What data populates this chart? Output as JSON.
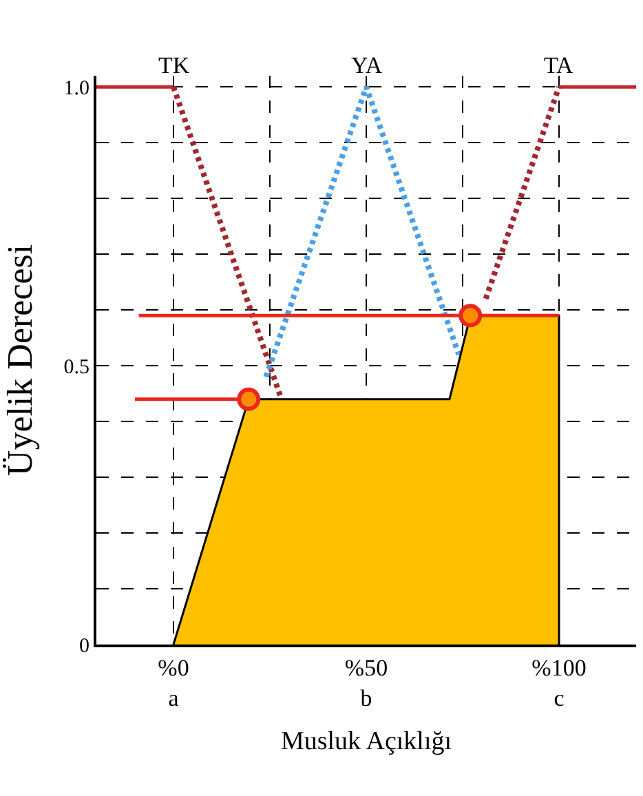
{
  "chart_data": {
    "type": "line",
    "xlabel": "Musluk Açıklığı",
    "ylabel": "Üyelik Derecesi",
    "xlim": [
      -20,
      120
    ],
    "ylim": [
      0,
      1.02
    ],
    "xticks": [
      {
        "value": 0,
        "label": "%0\na"
      },
      {
        "value": 25,
        "label": null
      },
      {
        "value": 50,
        "label": "%50\nb"
      },
      {
        "value": 75,
        "label": null
      },
      {
        "value": 100,
        "label": "%100\nc"
      }
    ],
    "yticks": [
      0,
      {
        "value": 0.1,
        "label": null
      },
      {
        "value": 0.2,
        "label": null
      },
      {
        "value": 0.3,
        "label": null
      },
      {
        "value": 0.4,
        "label": null
      },
      0.5,
      {
        "value": 0.6,
        "label": null
      },
      {
        "value": 0.7,
        "label": null
      },
      {
        "value": 0.8,
        "label": null
      },
      {
        "value": 0.9,
        "label": null
      },
      {
        "value": 1.0,
        "label": "1.0"
      }
    ],
    "grid": true,
    "legend": false,
    "series": [
      {
        "color": "#c0282e",
        "line_style": "solid",
        "marker": "none",
        "x": [
          -20,
          0
        ],
        "values": [
          1,
          1
        ]
      },
      {
        "color": "#c0282e",
        "line_style": "solid",
        "marker": "none",
        "x": [
          100,
          120
        ],
        "values": [
          1,
          1
        ]
      },
      {
        "name": "TK",
        "color": "#a0282e",
        "line_style": "dotted",
        "marker": "none",
        "x": [
          0,
          28
        ],
        "values": [
          1,
          0.44
        ]
      },
      {
        "name": "YA",
        "color": "#4a9fe8",
        "line_style": "dotted",
        "marker": "none",
        "x": [
          24,
          50,
          74
        ],
        "values": [
          0.48,
          1,
          0.52
        ]
      },
      {
        "name": "TA",
        "color": "#a0282e",
        "line_style": "dotted",
        "marker": "none",
        "x": [
          81,
          100
        ],
        "values": [
          0.62,
          1
        ]
      },
      {
        "type": "area",
        "color": "#ffc000",
        "x": [
          0,
          19.5,
          71.6,
          77,
          100,
          100
        ],
        "values": [
          0,
          0.44,
          0.44,
          0.59,
          0.59,
          0
        ]
      },
      {
        "type": "line",
        "color": "#e8281e",
        "line_style": "solid",
        "marker": "none",
        "x": [
          -10,
          19.5
        ],
        "values": [
          0.44,
          0.44
        ]
      },
      {
        "type": "line",
        "color": "#e8281e",
        "line_style": "solid",
        "marker": "none",
        "x": [
          -9,
          100
        ],
        "values": [
          0.59,
          0.59
        ]
      },
      {
        "type": "scatter",
        "color": "#e8281e",
        "marker": "circle",
        "x": [
          19.5,
          77
        ],
        "values": [
          0.44,
          0.59
        ]
      }
    ]
  }
}
